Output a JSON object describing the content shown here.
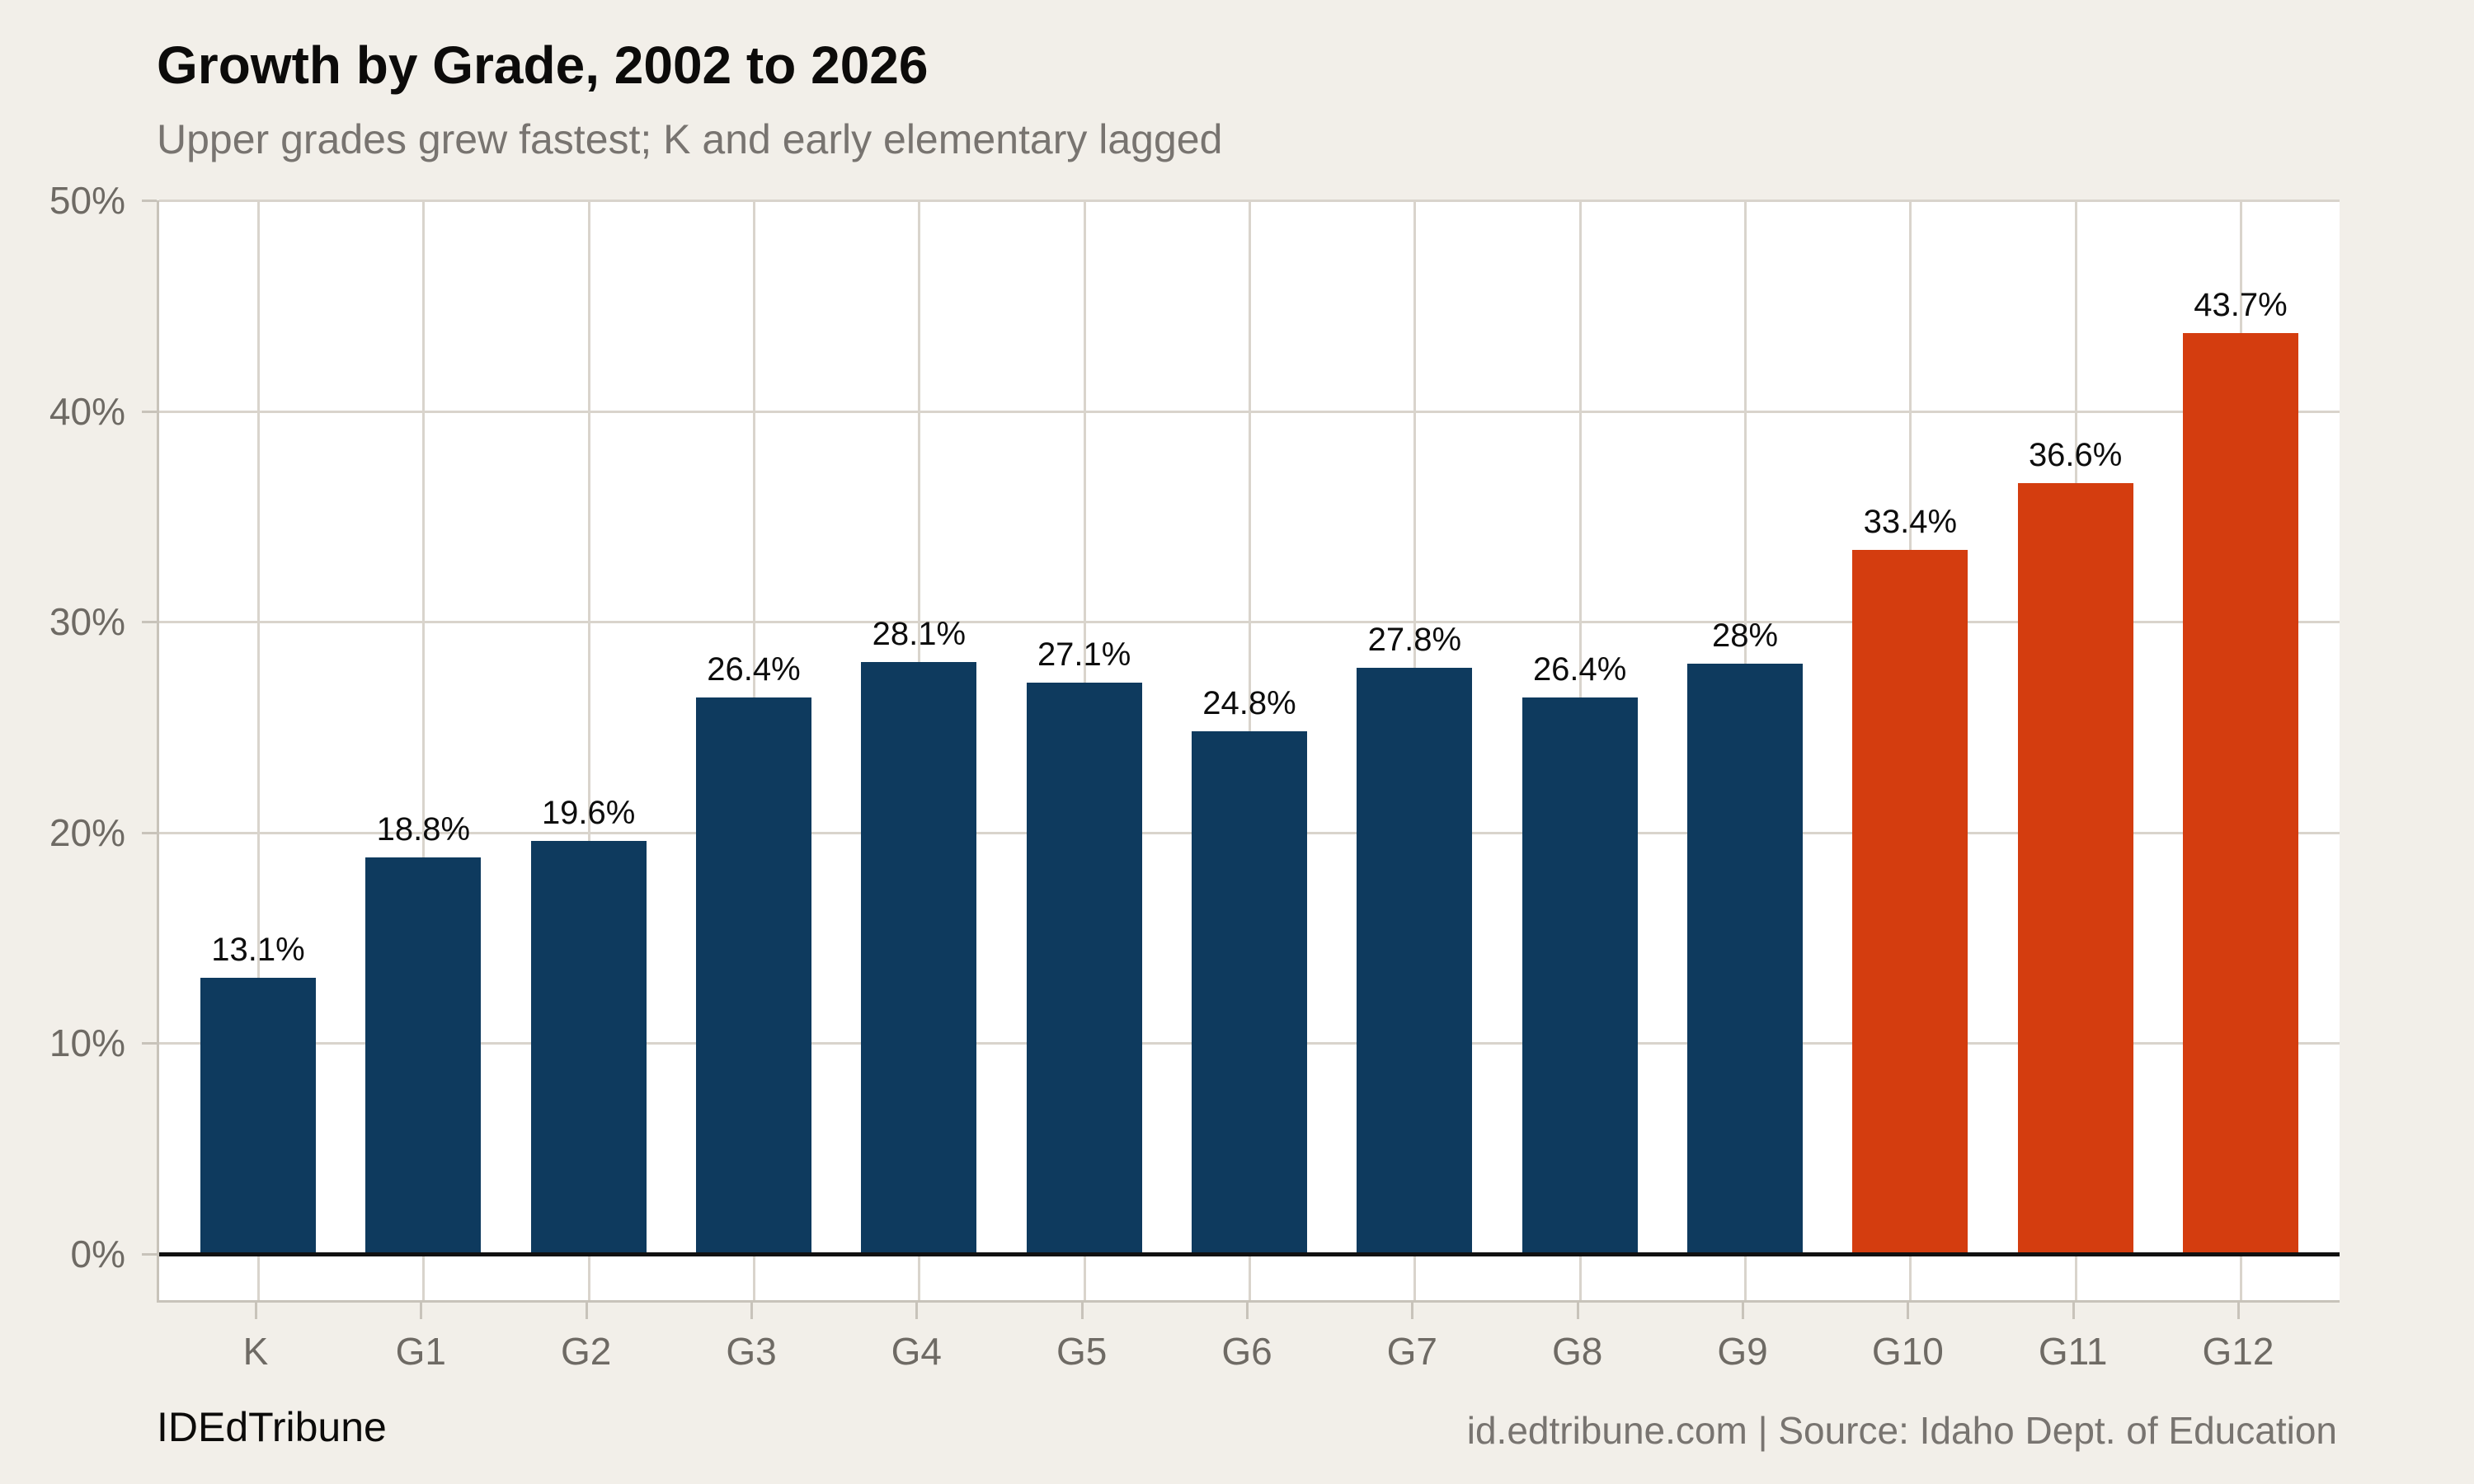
{
  "header": {
    "title": "Growth by Grade, 2002 to 2026",
    "subtitle": "Upper grades grew fastest; K and early elementary lagged"
  },
  "footer": {
    "left": "IDEdTribune",
    "right": "id.edtribune.com | Source: Idaho Dept. of Education"
  },
  "chart_data": {
    "type": "bar",
    "title": "Growth by Grade, 2002 to 2026",
    "subtitle": "Upper grades grew fastest; K and early elementary lagged",
    "categories": [
      "K",
      "G1",
      "G2",
      "G3",
      "G4",
      "G5",
      "G6",
      "G7",
      "G8",
      "G9",
      "G10",
      "G11",
      "G12"
    ],
    "values": [
      13.1,
      18.8,
      19.6,
      26.4,
      28.1,
      27.1,
      24.8,
      27.8,
      26.4,
      28,
      33.4,
      36.6,
      43.7
    ],
    "value_labels": [
      "13.1%",
      "18.8%",
      "19.6%",
      "26.4%",
      "28.1%",
      "27.1%",
      "24.8%",
      "27.8%",
      "26.4%",
      "28%",
      "33.4%",
      "36.6%",
      "43.7%"
    ],
    "xlabel": "",
    "ylabel": "",
    "ylim": [
      -2.2,
      50
    ],
    "yticks": [
      0,
      10,
      20,
      30,
      40,
      50
    ],
    "ytick_labels": [
      "0%",
      "10%",
      "20%",
      "30%",
      "40%",
      "50%"
    ],
    "grid": true,
    "legend": "none",
    "bar_color": "#0e3a5e",
    "highlight": {
      "categories": [
        "G10",
        "G11",
        "G12"
      ],
      "color": "#d43d0f"
    },
    "zero_line_color": "#111111",
    "background_color": "#f2efe9",
    "panel_color": "#ffffff"
  }
}
